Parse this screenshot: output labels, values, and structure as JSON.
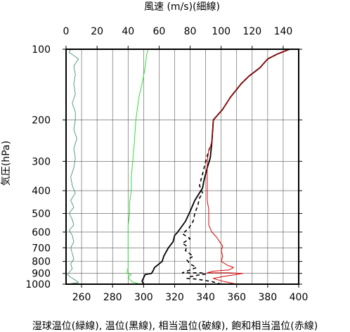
{
  "chart_data": {
    "type": "line",
    "title": "",
    "top_axis": {
      "label": "風速 (m/s)(細線)",
      "range": [
        0,
        150
      ],
      "ticks": [
        0,
        20,
        40,
        60,
        80,
        100,
        120,
        140
      ],
      "tick_labels": [
        "0",
        "20",
        "40",
        "60",
        "80",
        "100",
        "120",
        "140"
      ]
    },
    "bottom_axis": {
      "label": "湿球温位(緑線), 温位(黒線), 相当温位(破線), 飽和相当温位(赤線)",
      "range": [
        250,
        400
      ],
      "ticks": [
        260,
        280,
        300,
        320,
        340,
        360,
        380,
        400
      ],
      "tick_labels": [
        "260",
        "280",
        "300",
        "320",
        "340",
        "360",
        "380",
        "400"
      ]
    },
    "y_axis": {
      "label": "気圧(hPa)",
      "scale": "log",
      "inverted": true,
      "range": [
        100,
        1000
      ],
      "ticks": [
        100,
        200,
        300,
        400,
        500,
        600,
        700,
        800,
        900,
        1000
      ],
      "tick_labels": [
        "100",
        "200",
        "300",
        "400",
        "500",
        "600",
        "700",
        "800",
        "900",
        "1000"
      ]
    },
    "grid": true,
    "series": [
      {
        "id": "wind-speed",
        "axis": "top",
        "color": "#2e8b57",
        "style": "thin",
        "points": [
          [
            0.5,
            1000
          ],
          [
            8,
            985
          ],
          [
            6,
            960
          ],
          [
            3,
            935
          ],
          [
            1,
            910
          ],
          [
            2,
            890
          ],
          [
            4,
            860
          ],
          [
            3,
            820
          ],
          [
            5,
            780
          ],
          [
            4,
            740
          ],
          [
            3,
            700
          ],
          [
            5,
            660
          ],
          [
            4,
            620
          ],
          [
            2,
            590
          ],
          [
            5,
            560
          ],
          [
            4,
            530
          ],
          [
            2,
            500
          ],
          [
            5,
            470
          ],
          [
            3,
            440
          ],
          [
            6,
            410
          ],
          [
            4,
            380
          ],
          [
            3,
            350
          ],
          [
            5,
            320
          ],
          [
            6,
            290
          ],
          [
            5,
            265
          ],
          [
            7,
            240
          ],
          [
            5,
            220
          ],
          [
            6,
            200
          ],
          [
            6,
            185
          ],
          [
            4,
            170
          ],
          [
            6,
            155
          ],
          [
            5,
            140
          ],
          [
            6,
            128
          ],
          [
            5,
            118
          ],
          [
            8,
            110
          ],
          [
            2,
            103
          ],
          [
            3,
            100
          ]
        ]
      },
      {
        "id": "wet-bulb-potential-temperature",
        "axis": "bottom",
        "color": "#33dd33",
        "points": [
          [
            298,
            1000
          ],
          [
            293,
            980
          ],
          [
            290,
            940
          ],
          [
            292,
            910
          ],
          [
            289,
            900
          ],
          [
            290,
            850
          ],
          [
            290,
            800
          ],
          [
            290,
            740
          ],
          [
            290,
            700
          ],
          [
            290,
            650
          ],
          [
            290,
            600
          ],
          [
            290,
            560
          ],
          [
            291,
            500
          ],
          [
            291,
            450
          ],
          [
            292,
            400
          ],
          [
            292,
            350
          ],
          [
            293,
            300
          ],
          [
            294,
            250
          ],
          [
            295,
            200
          ],
          [
            297,
            160
          ],
          [
            299,
            140
          ],
          [
            301,
            120
          ],
          [
            302,
            105
          ],
          [
            303,
            100
          ]
        ]
      },
      {
        "id": "potential-temperature",
        "axis": "bottom",
        "color": "#000000",
        "points": [
          [
            300,
            1000
          ],
          [
            299,
            970
          ],
          [
            300,
            940
          ],
          [
            301,
            910
          ],
          [
            305,
            900
          ],
          [
            306,
            880
          ],
          [
            307,
            850
          ],
          [
            312,
            800
          ],
          [
            313,
            760
          ],
          [
            316,
            700
          ],
          [
            319,
            660
          ],
          [
            320,
            620
          ],
          [
            322,
            600
          ],
          [
            327,
            540
          ],
          [
            330,
            490
          ],
          [
            333,
            440
          ],
          [
            338,
            390
          ],
          [
            339,
            360
          ],
          [
            341,
            320
          ],
          [
            343,
            290
          ],
          [
            344,
            250
          ],
          [
            345,
            200
          ],
          [
            351,
            180
          ],
          [
            356,
            160
          ],
          [
            363,
            140
          ],
          [
            368,
            130
          ],
          [
            375,
            120
          ],
          [
            380,
            110
          ],
          [
            386,
            105
          ],
          [
            394,
            100
          ]
        ]
      },
      {
        "id": "equivalent-potential-temperature",
        "axis": "bottom",
        "color": "#000000",
        "dashed": true,
        "points": [
          [
            350,
            1000
          ],
          [
            344,
            975
          ],
          [
            338,
            960
          ],
          [
            333,
            950
          ],
          [
            328,
            945
          ],
          [
            330,
            930
          ],
          [
            335,
            915
          ],
          [
            340,
            905
          ],
          [
            337,
            895
          ],
          [
            332,
            895
          ],
          [
            325,
            895
          ],
          [
            330,
            870
          ],
          [
            334,
            850
          ],
          [
            330,
            820
          ],
          [
            328,
            790
          ],
          [
            332,
            760
          ],
          [
            327,
            720
          ],
          [
            328,
            690
          ],
          [
            325,
            670
          ],
          [
            330,
            640
          ],
          [
            325,
            610
          ],
          [
            329,
            580
          ],
          [
            332,
            540
          ],
          [
            333,
            500
          ],
          [
            335,
            460
          ],
          [
            336,
            430
          ],
          [
            338,
            410
          ],
          [
            336,
            380
          ],
          [
            338,
            340
          ],
          [
            340,
            300
          ],
          [
            342,
            270
          ],
          [
            344,
            250
          ],
          [
            345,
            200
          ],
          [
            351,
            180
          ],
          [
            356,
            160
          ],
          [
            363,
            140
          ],
          [
            368,
            130
          ],
          [
            375,
            120
          ],
          [
            380,
            110
          ],
          [
            386,
            105
          ],
          [
            394,
            100
          ]
        ]
      },
      {
        "id": "saturated-equivalent-potential-temperature",
        "axis": "bottom",
        "color": "#dd0000",
        "points": [
          [
            360,
            1000
          ],
          [
            352,
            975
          ],
          [
            347,
            955
          ],
          [
            345,
            945
          ],
          [
            352,
            925
          ],
          [
            360,
            910
          ],
          [
            364,
            900
          ],
          [
            355,
            895
          ],
          [
            341,
            895
          ],
          [
            345,
            880
          ],
          [
            355,
            870
          ],
          [
            358,
            850
          ],
          [
            354,
            830
          ],
          [
            350,
            800
          ],
          [
            351,
            760
          ],
          [
            350,
            720
          ],
          [
            351,
            690
          ],
          [
            349,
            660
          ],
          [
            347,
            630
          ],
          [
            344,
            600
          ],
          [
            342,
            560
          ],
          [
            342,
            520
          ],
          [
            342,
            480
          ],
          [
            341,
            440
          ],
          [
            341,
            400
          ],
          [
            341,
            360
          ],
          [
            341,
            330
          ],
          [
            341,
            300
          ],
          [
            342,
            270
          ],
          [
            344,
            250
          ],
          [
            345,
            200
          ],
          [
            351,
            180
          ],
          [
            356,
            160
          ],
          [
            363,
            140
          ],
          [
            368,
            130
          ],
          [
            375,
            120
          ],
          [
            380,
            110
          ],
          [
            386,
            105
          ],
          [
            394,
            100
          ]
        ]
      }
    ]
  }
}
